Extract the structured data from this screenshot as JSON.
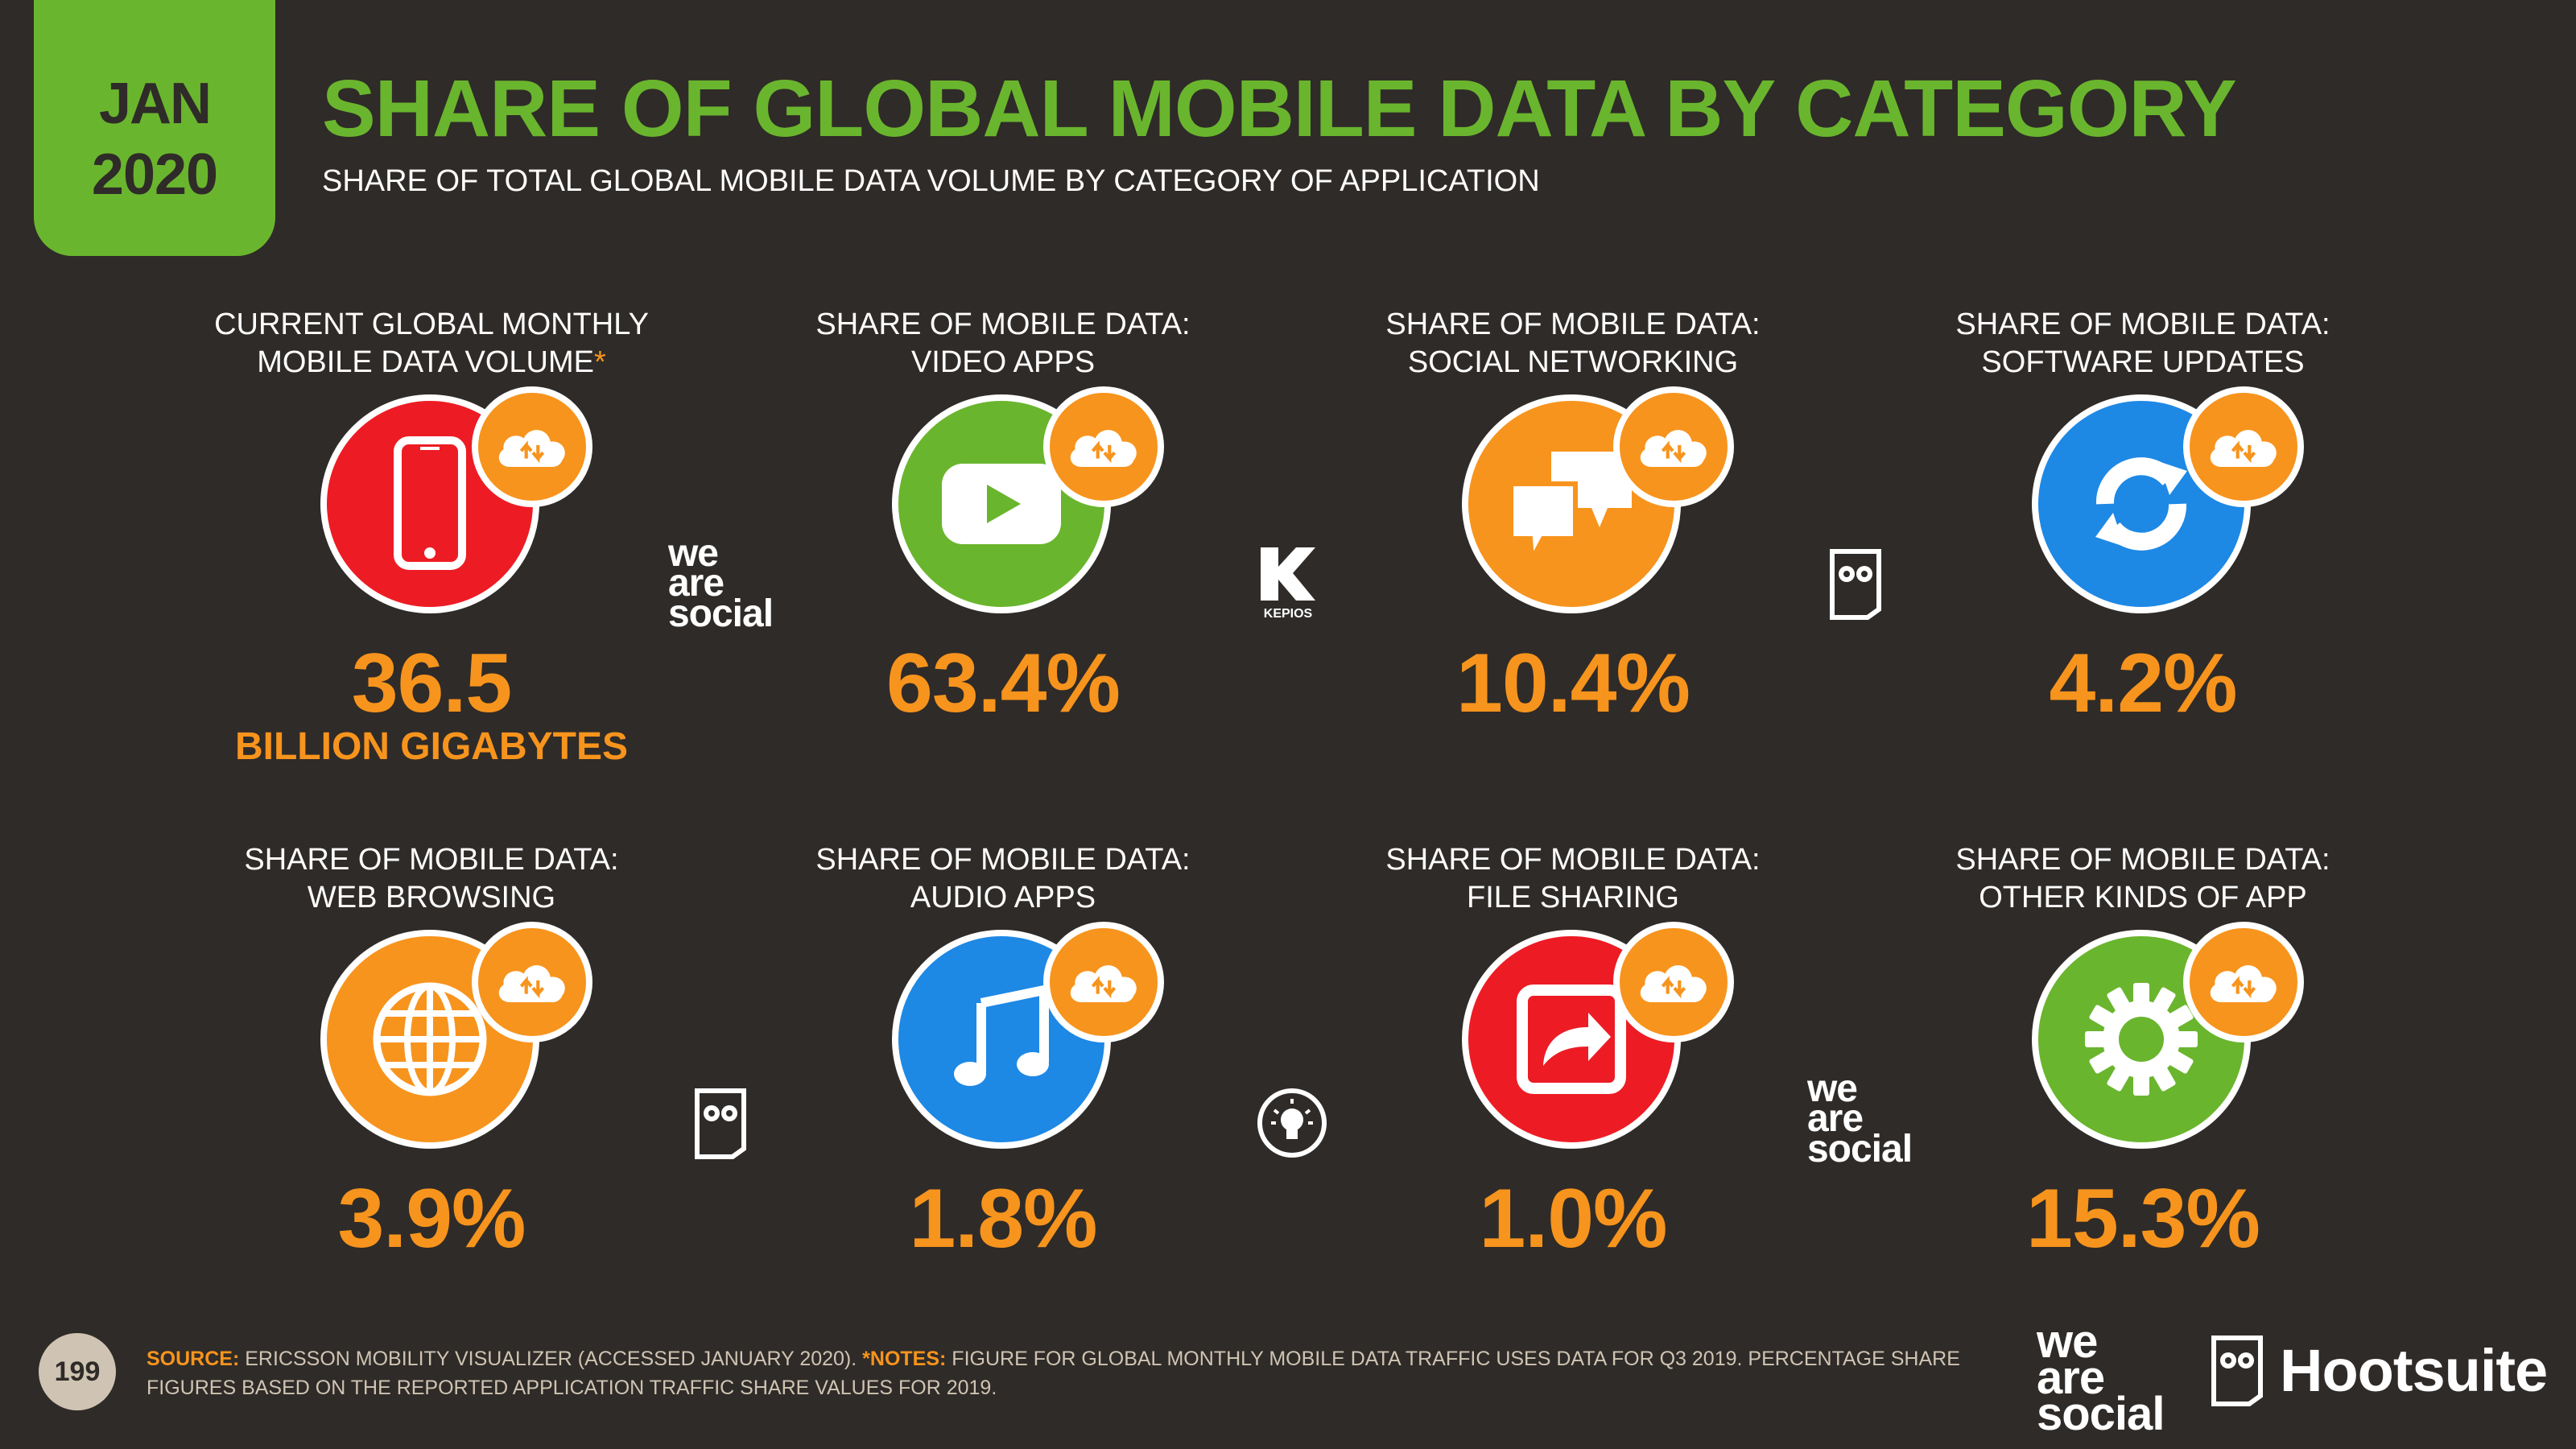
{
  "header": {
    "month": "JAN",
    "year": "2020",
    "title": "SHARE OF GLOBAL MOBILE DATA BY CATEGORY",
    "subtitle": "SHARE OF TOTAL GLOBAL MOBILE DATA VOLUME BY CATEGORY OF APPLICATION"
  },
  "colors": {
    "background": "#2f2b28",
    "title_green": "#6ab52e",
    "value_orange": "#f7941d",
    "red": "#ed1c24",
    "green": "#6ab52e",
    "orange": "#f7941d",
    "blue": "#1e88e5"
  },
  "cards": [
    {
      "label_line1": "CURRENT GLOBAL MONTHLY",
      "label_line2": "MOBILE DATA VOLUME",
      "asterisk": "*",
      "value": "36.5",
      "unit": "BILLION GIGABYTES",
      "icon": "smartphone-icon",
      "color": "#ed1c24"
    },
    {
      "label_line1": "SHARE OF MOBILE DATA:",
      "label_line2": "VIDEO APPS",
      "value": "63.4%",
      "icon": "video-play-icon",
      "color": "#6ab52e"
    },
    {
      "label_line1": "SHARE OF MOBILE DATA:",
      "label_line2": "SOCIAL NETWORKING",
      "value": "10.4%",
      "icon": "chat-bubbles-icon",
      "color": "#f7941d"
    },
    {
      "label_line1": "SHARE OF MOBILE DATA:",
      "label_line2": "SOFTWARE UPDATES",
      "value": "4.2%",
      "icon": "refresh-icon",
      "color": "#1e88e5"
    },
    {
      "label_line1": "SHARE OF MOBILE DATA:",
      "label_line2": "WEB BROWSING",
      "value": "3.9%",
      "icon": "globe-icon",
      "color": "#f7941d"
    },
    {
      "label_line1": "SHARE OF MOBILE DATA:",
      "label_line2": "AUDIO APPS",
      "value": "1.8%",
      "icon": "music-note-icon",
      "color": "#1e88e5"
    },
    {
      "label_line1": "SHARE OF MOBILE DATA:",
      "label_line2": "FILE SHARING",
      "value": "1.0%",
      "icon": "share-arrow-icon",
      "color": "#ed1c24"
    },
    {
      "label_line1": "SHARE OF MOBILE DATA:",
      "label_line2": "OTHER KINDS OF APP",
      "value": "15.3%",
      "icon": "gear-icon",
      "color": "#6ab52e"
    }
  ],
  "logos": {
    "we_are_social": [
      "we",
      "are",
      "social"
    ],
    "kepios": "KEPIOS",
    "hootsuite": "Hootsuite"
  },
  "footer": {
    "page_number": "199",
    "source_label": "SOURCE:",
    "source_text": "ERICSSON MOBILITY VISUALIZER (ACCESSED JANUARY 2020).",
    "notes_label": "*NOTES:",
    "notes_text": "FIGURE FOR GLOBAL MONTHLY MOBILE DATA TRAFFIC USES DATA FOR Q3 2019. PERCENTAGE SHARE FIGURES BASED ON THE REPORTED APPLICATION TRAFFIC SHARE VALUES FOR 2019."
  }
}
